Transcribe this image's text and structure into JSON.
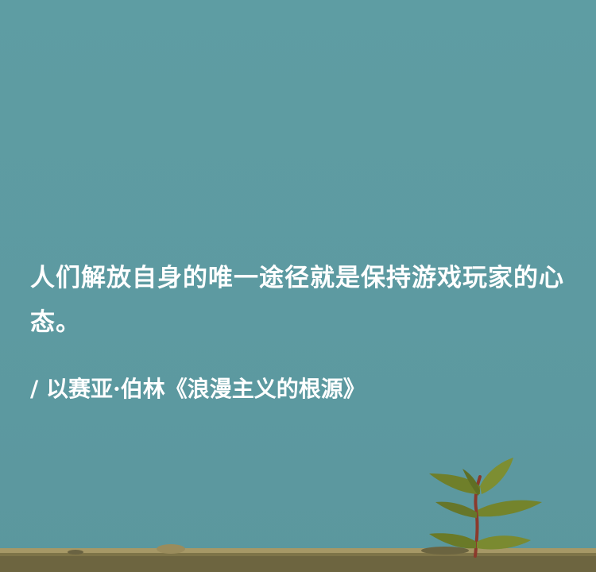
{
  "quote": {
    "text": "人们解放自身的唯一途径就是保持游戏玩家的心态。"
  },
  "attribution": {
    "text": "/ 以赛亚·伯林《浪漫主义的根源》"
  },
  "colors": {
    "sky": "#5e9da3",
    "text": "#ffffff",
    "leaf": "#7a8a2e",
    "stem": "#8a3a2a",
    "wall": "#8a7a4a"
  },
  "icons": [
    "seedling-icon"
  ]
}
